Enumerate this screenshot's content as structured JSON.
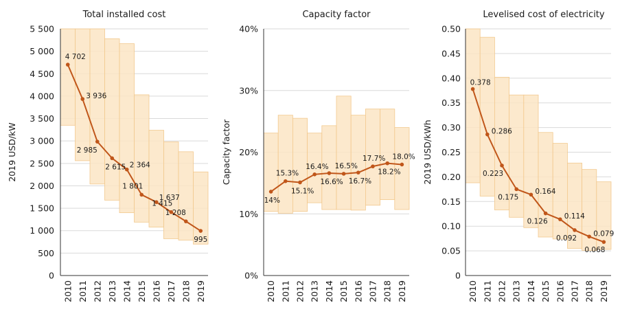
{
  "colors": {
    "band_fill": "#fbe5c4",
    "band_edge": "#f2c98e",
    "line": "#c0561a",
    "grid": "#d9d9d9",
    "axis": "#333333"
  },
  "chart_data": [
    {
      "type": "line",
      "title": "Total installed cost",
      "ylabel": "2019 USD/kW",
      "x": [
        "2010",
        "2011",
        "2012",
        "2013",
        "2014",
        "2015",
        "2016",
        "2017",
        "2018",
        "2019"
      ],
      "ylim": [
        0,
        5500
      ],
      "yticks": [
        0,
        500,
        1000,
        1500,
        2000,
        2500,
        3000,
        3500,
        4000,
        4500,
        5000,
        5500
      ],
      "ytick_labels": [
        "0",
        "500",
        "1 000",
        "1 500",
        "2 000",
        "2 500",
        "3 000",
        "3 500",
        "4 000",
        "4 500",
        "5 000",
        "5 500"
      ],
      "series": [
        {
          "values": [
            4702,
            3936,
            2985,
            2615,
            2364,
            1801,
            1637,
            1415,
            1208,
            995
          ],
          "labels": [
            "4 702",
            "3 936",
            "2 985",
            "2 615",
            "2 364",
            "1 801",
            "1 637",
            "1 415",
            "1 208",
            "995"
          ]
        }
      ],
      "range_low": [
        3350,
        2560,
        2040,
        1680,
        1400,
        1190,
        1080,
        820,
        790,
        700
      ],
      "range_high": [
        5500,
        5500,
        5500,
        5280,
        5170,
        4030,
        3240,
        2980,
        2760,
        2310
      ]
    },
    {
      "type": "line",
      "title": "Capacity factor",
      "ylabel": "Capacity factor",
      "x": [
        "2010",
        "2011",
        "2012",
        "2013",
        "2014",
        "2015",
        "2016",
        "2017",
        "2018",
        "2019"
      ],
      "ylim": [
        0,
        40
      ],
      "yticks": [
        0,
        10,
        20,
        30,
        40
      ],
      "ytick_labels": [
        "0%",
        "10%",
        "20%",
        "30%",
        "40%"
      ],
      "series": [
        {
          "values": [
            13.6,
            15.3,
            15.1,
            16.4,
            16.6,
            16.5,
            16.7,
            17.7,
            18.2,
            18.0
          ],
          "labels": [
            "14%",
            "15.3%",
            "15.1%",
            "16.4%",
            "16.6%",
            "16.5%",
            "16.7%",
            "17.7%",
            "18.2%",
            "18.0%"
          ]
        }
      ],
      "range_low": [
        10.4,
        10.1,
        10.4,
        11.8,
        10.7,
        10.7,
        10.6,
        11.4,
        12.3,
        10.7
      ],
      "range_high": [
        23.1,
        26.0,
        25.5,
        23.1,
        24.3,
        29.1,
        26.0,
        27.0,
        27.0,
        24.0
      ]
    },
    {
      "type": "line",
      "title": "Levelised cost of electricity",
      "ylabel": "2019 USD/kWh",
      "x": [
        "2010",
        "2011",
        "2012",
        "2013",
        "2014",
        "2015",
        "2016",
        "2017",
        "2018",
        "2019"
      ],
      "ylim": [
        0,
        0.5
      ],
      "yticks": [
        0,
        0.05,
        0.1,
        0.15,
        0.2,
        0.25,
        0.3,
        0.35,
        0.4,
        0.45,
        0.5
      ],
      "ytick_labels": [
        "0",
        "0.05",
        "0.10",
        "0.15",
        "0.20",
        "0.25",
        "0.30",
        "0.35",
        "0.40",
        "0.45",
        "0.50"
      ],
      "series": [
        {
          "values": [
            0.378,
            0.286,
            0.223,
            0.175,
            0.164,
            0.126,
            0.114,
            0.092,
            0.079,
            0.068
          ],
          "labels": [
            "0.378",
            "0.286",
            "0.223",
            "0.175",
            "0.164",
            "0.126",
            "0.114",
            "0.092",
            "0.079",
            "0.068"
          ]
        }
      ],
      "range_low": [
        0.188,
        0.161,
        0.133,
        0.118,
        0.097,
        0.078,
        0.074,
        0.055,
        0.051,
        0.053
      ],
      "range_high": [
        0.5,
        0.483,
        0.402,
        0.366,
        0.366,
        0.29,
        0.268,
        0.228,
        0.215,
        0.19
      ]
    }
  ]
}
